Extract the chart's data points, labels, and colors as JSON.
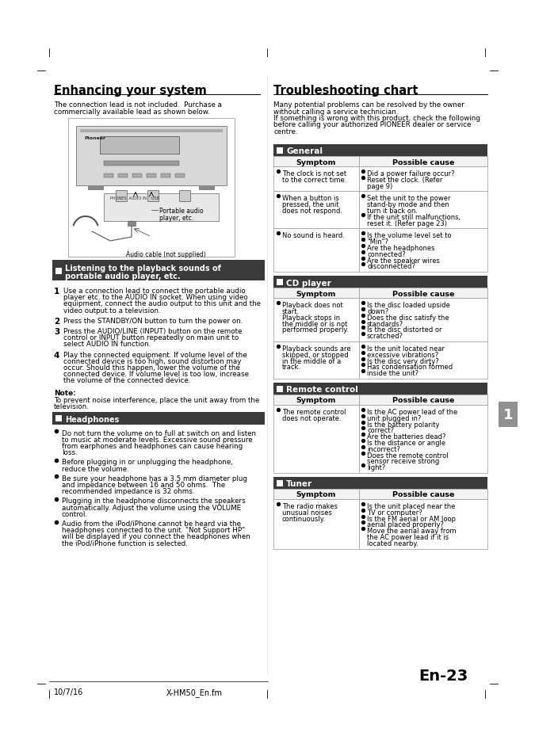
{
  "page_bg": "#ffffff",
  "title_left": "Enhancing your system",
  "title_right": "Troubleshooting chart",
  "footer_left": "10/7/16",
  "footer_center": "X-HM50_En.fm",
  "footer_page": "En-23",
  "section_header_color": "#3a3a3a",
  "section_header_text_color": "#ffffff",
  "table_header_bg": "#f2f2f2",
  "table_border": "#999999",
  "sections": [
    {
      "name": "General",
      "rows": [
        {
          "symptom_lines": [
            "The clock is not set",
            "to the correct time."
          ],
          "cause_lines": [
            "Did a power failure occur?",
            "Reset the clock. (Refer",
            "page 9)"
          ]
        },
        {
          "symptom_lines": [
            "When a button is",
            "pressed, the unit",
            "does not respond."
          ],
          "cause_lines": [
            "Set the unit to the power",
            "stand-by mode and then",
            "turn it back on.",
            "If the unit still malfunctions,",
            "reset it. (Refer page 23)"
          ]
        },
        {
          "symptom_lines": [
            "No sound is heard."
          ],
          "cause_lines": [
            "Is the volume level set to",
            "\"Min\"?",
            "Are the headphones",
            "connected?",
            "Are the speaker wires",
            "disconnected?"
          ]
        }
      ]
    },
    {
      "name": "CD player",
      "rows": [
        {
          "symptom_lines": [
            "Playback does not",
            "start.",
            "Playback stops in",
            "the middle or is not",
            "performed properly."
          ],
          "cause_lines": [
            "Is the disc loaded upside",
            "down?",
            "Does the disc satisfy the",
            "standards?",
            "Is the disc distorted or",
            "scratched?"
          ]
        },
        {
          "symptom_lines": [
            "Playback sounds are",
            "skipped, or stopped",
            "in the middle of a",
            "track."
          ],
          "cause_lines": [
            "Is the unit located near",
            "excessive vibrations?",
            "Is the disc very dirty?",
            "Has condensation formed",
            "inside the unit?"
          ]
        }
      ]
    },
    {
      "name": "Remote control",
      "rows": [
        {
          "symptom_lines": [
            "The remote control",
            "does not operate."
          ],
          "cause_lines": [
            "Is the AC power lead of the",
            "unit plugged in?",
            "Is the battery polarity",
            "correct?",
            "Are the batteries dead?",
            "Is the distance or angle",
            "incorrect?",
            "Does the remote control",
            "sensor receive strong",
            "light?"
          ]
        }
      ]
    },
    {
      "name": "Tuner",
      "rows": [
        {
          "symptom_lines": [
            "The radio makes",
            "unusual noises",
            "continuously."
          ],
          "cause_lines": [
            "Is the unit placed near the",
            "TV or computer?",
            "Is the FM aerial or AM loop",
            "aerial placed properly?",
            "Move the aerial away from",
            "the AC power lead if it is",
            "located nearby."
          ]
        }
      ]
    }
  ],
  "steps": [
    {
      "num": "1",
      "lines": [
        "Use a connection lead to connect the portable audio",
        "player etc. to the AUDIO IN socket. When using video",
        "equipment, connect the audio output to this unit and the",
        "video output to a television."
      ]
    },
    {
      "num": "2",
      "lines": [
        "Press the STANDBY/ON button to turn the power on."
      ]
    },
    {
      "num": "3",
      "lines": [
        "Press the AUDIO/LINE (INPUT) button on the remote",
        "control or INPUT button repeatedly on main unit to",
        "select AUDIO IN function."
      ]
    },
    {
      "num": "4",
      "lines": [
        "Play the connected equipment. If volume level of the",
        "connected device is too high, sound distortion may",
        "occur. Should this happen, lower the volume of the",
        "connected device. If volume level is too low, increase",
        "the volume of the connected device."
      ]
    }
  ],
  "headphone_bullets": [
    [
      "Do not turn the volume on to full at switch on and listen",
      "to music at moderate levels. Excessive sound pressure",
      "from earphones and headphones can cause hearing",
      "loss."
    ],
    [
      "Before plugging in or unplugging the headphone,",
      "reduce the volume."
    ],
    [
      "Be sure your headphone has a 3.5 mm diameter plug",
      "and impedance between 16 and 50 ohms.  The",
      "recommended impedance is 32 ohms."
    ],
    [
      "Plugging in the headphone disconnects the speakers",
      "automatically. Adjust the volume using the VOLUME",
      "control."
    ],
    [
      "Audio from the iPod/iPhone cannot be heard via the",
      "headphones connected to the unit. \"Not Support HP\"",
      "will be displayed if you connect the headphones when",
      "the iPod/iPhone function is selected."
    ]
  ]
}
